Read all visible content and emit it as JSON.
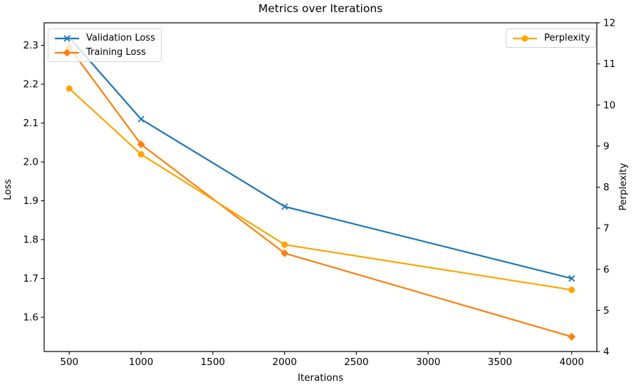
{
  "chart_data": {
    "type": "line",
    "title": "Metrics over Iterations",
    "xlabel": "Iterations",
    "ylabel_left": "Loss",
    "ylabel_right": "Perplexity",
    "x": [
      500,
      1000,
      2000,
      4000
    ],
    "series": [
      {
        "name": "Validation Loss",
        "axis": "left",
        "color": "#1f77b4",
        "marker": "x",
        "values": [
          2.32,
          2.11,
          1.885,
          1.7
        ]
      },
      {
        "name": "Training Loss",
        "axis": "left",
        "color": "#ff7f0e",
        "marker": "diamond",
        "values": [
          2.295,
          2.045,
          1.765,
          1.55
        ]
      },
      {
        "name": "Perplexity",
        "axis": "right",
        "color": "#ffa500",
        "marker": "circle",
        "values": [
          10.4,
          8.8,
          6.6,
          5.5
        ]
      }
    ],
    "x_tick_labels": [
      "500",
      "1000",
      "1500",
      "2000",
      "2500",
      "3000",
      "3500",
      "4000"
    ],
    "left_tick_labels": [
      "1.6",
      "1.7",
      "1.8",
      "1.9",
      "2.0",
      "2.1",
      "2.2",
      "2.3"
    ],
    "right_tick_labels": [
      "4",
      "5",
      "6",
      "7",
      "8",
      "9",
      "10",
      "11",
      "12"
    ],
    "xlim": [
      325,
      4175
    ],
    "ylim_left": [
      1.512,
      2.358
    ],
    "ylim_right": [
      4,
      12
    ],
    "grid": false,
    "legend_left_entries": [
      "Validation Loss",
      "Training Loss"
    ],
    "legend_right_entries": [
      "Perplexity"
    ],
    "axis_color": "#000000"
  }
}
